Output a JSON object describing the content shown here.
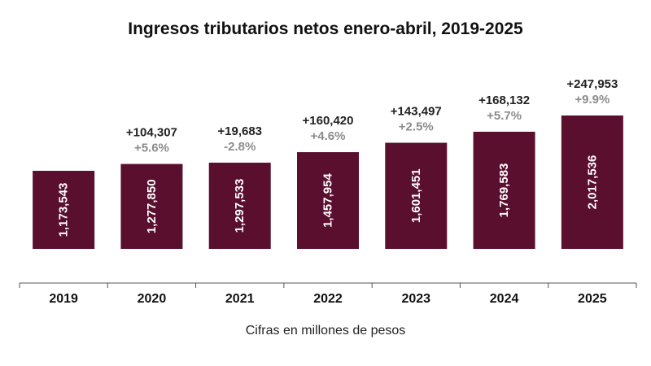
{
  "chart_data": {
    "type": "bar",
    "title": "Ingresos tributarios netos enero-abril, 2019-2025",
    "xlabel": "Cifras en millones de pesos",
    "ylabel": "",
    "categories": [
      "2019",
      "2020",
      "2021",
      "2022",
      "2023",
      "2024",
      "2025"
    ],
    "values": [
      1173543,
      1277850,
      1297533,
      1457954,
      1601451,
      1769583,
      2017536
    ],
    "value_labels": [
      "1,173,543",
      "1,277,850",
      "1,297,533",
      "1,457,954",
      "1,601,451",
      "1,769,583",
      "2,017,536"
    ],
    "change_abs": [
      null,
      "+104,307",
      "+19,683",
      "+160,420",
      "+143,497",
      "+168,132",
      "+247,953"
    ],
    "change_pct": [
      null,
      "+5.6%",
      "-2.8%",
      "+4.6%",
      "+2.5%",
      "+5.7%",
      "+9.9%"
    ],
    "ylim": [
      0,
      2017536
    ],
    "grid": false,
    "bar_color": "#5a0f2e",
    "label_color": "#222222",
    "pct_color": "#8c8c8c"
  }
}
